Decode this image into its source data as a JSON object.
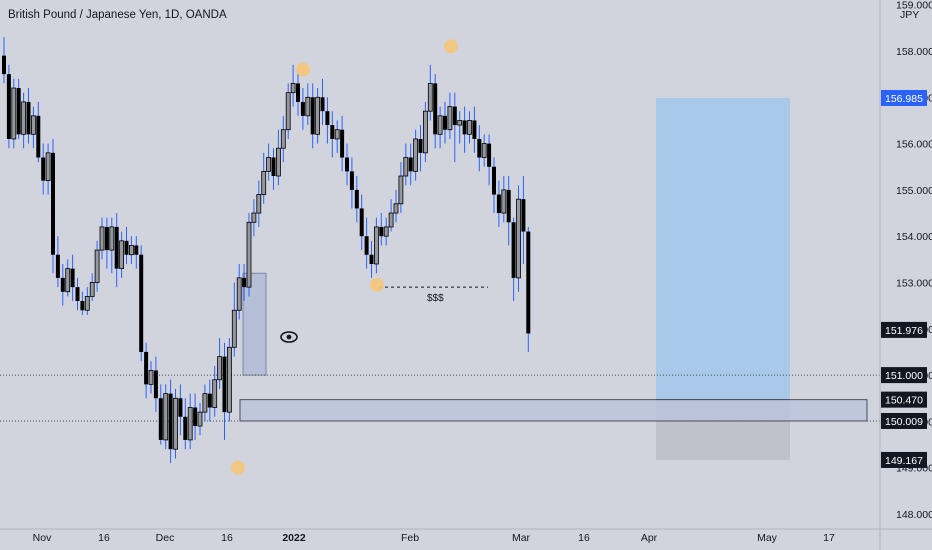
{
  "header": {
    "title": "British Pound / Japanese Yen, 1D, OANDA"
  },
  "price_axis": {
    "currency": "JPY",
    "ticks": [
      "159.000",
      "158.000",
      "157.000",
      "156.000",
      "155.000",
      "154.000",
      "153.000",
      "152.000",
      "151.000",
      "150.000",
      "149.000",
      "148.000"
    ]
  },
  "time_axis": {
    "labels": [
      "Nov",
      "16",
      "Dec",
      "16",
      "2022",
      "Feb",
      "Mar",
      "16",
      "Apr",
      "May",
      "17"
    ]
  },
  "price_badges": [
    {
      "name": "target-price-badge",
      "label": "156.985",
      "bg": "#2962ff",
      "fg": "#ffffff"
    },
    {
      "name": "last-price-badge",
      "label": "151.976",
      "bg": "#131722",
      "fg": "#ffffff"
    },
    {
      "name": "line-151-badge",
      "label": "151.000",
      "bg": "#131722",
      "fg": "#ffffff"
    },
    {
      "name": "zone-top-badge",
      "label": "150.470",
      "bg": "#131722",
      "fg": "#ffffff"
    },
    {
      "name": "zone-bottom-badge",
      "label": "150.009",
      "bg": "#131722",
      "fg": "#ffffff"
    },
    {
      "name": "stop-price-badge",
      "label": "149.167",
      "bg": "#131722",
      "fg": "#ffffff"
    }
  ],
  "annotations": {
    "liquidity_label": "$$$",
    "eye_icon": "eye-icon"
  },
  "colors": {
    "background": "#d1d4dc",
    "bull_body": "#9598a1",
    "bear_body": "#000000",
    "wick": "#2962ff",
    "marker": "#f5c57a",
    "profit_zone": "#a9c9ea",
    "loss_zone": "#b8bcc4",
    "demand_zone": "#b9c3dc"
  },
  "chart_data": {
    "type": "candlestick",
    "symbol": "British Pound / Japanese Yen",
    "interval": "1D",
    "ylim": [
      148,
      159
    ],
    "candles": [
      [
        157.9,
        157.5,
        158.3,
        157.3
      ],
      [
        157.5,
        156.1,
        157.7,
        155.9
      ],
      [
        156.1,
        157.2,
        157.4,
        155.9
      ],
      [
        157.2,
        156.2,
        157.4,
        156.1
      ],
      [
        156.2,
        156.9,
        157.1,
        155.9
      ],
      [
        156.9,
        156.2,
        157.2,
        156.0
      ],
      [
        156.2,
        156.6,
        156.8,
        155.9
      ],
      [
        156.6,
        155.7,
        156.9,
        155.6
      ],
      [
        155.7,
        155.2,
        156.0,
        154.9
      ],
      [
        155.2,
        155.8,
        156.0,
        154.9
      ],
      [
        155.8,
        153.6,
        156.1,
        153.2
      ],
      [
        153.6,
        153.1,
        154.0,
        152.9
      ],
      [
        153.1,
        152.8,
        153.4,
        152.5
      ],
      [
        152.8,
        153.3,
        153.5,
        152.7
      ],
      [
        153.3,
        152.9,
        153.6,
        152.6
      ],
      [
        152.9,
        152.6,
        153.1,
        152.4
      ],
      [
        152.6,
        152.4,
        152.8,
        152.3
      ],
      [
        152.4,
        152.7,
        152.9,
        152.3
      ],
      [
        152.7,
        153.0,
        153.2,
        152.6
      ],
      [
        153.0,
        153.7,
        153.9,
        152.8
      ],
      [
        153.7,
        154.2,
        154.4,
        153.5
      ],
      [
        154.2,
        153.7,
        154.4,
        153.3
      ],
      [
        153.7,
        154.2,
        154.4,
        153.2
      ],
      [
        154.2,
        153.3,
        154.5,
        152.9
      ],
      [
        153.3,
        153.9,
        154.1,
        153.1
      ],
      [
        153.9,
        153.6,
        154.2,
        153.4
      ],
      [
        153.6,
        153.8,
        154.0,
        153.4
      ],
      [
        153.8,
        153.6,
        154.0,
        153.3
      ],
      [
        153.6,
        151.5,
        153.8,
        151.3
      ],
      [
        151.5,
        150.8,
        151.7,
        150.5
      ],
      [
        150.8,
        151.1,
        151.3,
        150.6
      ],
      [
        151.1,
        150.5,
        151.4,
        150.2
      ],
      [
        150.5,
        149.6,
        150.8,
        149.5
      ],
      [
        149.6,
        150.6,
        150.8,
        149.4
      ],
      [
        150.6,
        149.4,
        150.9,
        149.1
      ],
      [
        149.4,
        150.5,
        150.7,
        149.2
      ],
      [
        150.5,
        150.1,
        150.8,
        149.7
      ],
      [
        150.1,
        149.6,
        150.5,
        149.4
      ],
      [
        149.6,
        150.3,
        150.6,
        149.4
      ],
      [
        150.3,
        149.9,
        150.6,
        149.6
      ],
      [
        149.9,
        150.2,
        150.4,
        149.7
      ],
      [
        150.2,
        150.6,
        150.8,
        150.0
      ],
      [
        150.6,
        150.3,
        150.9,
        150.0
      ],
      [
        150.3,
        150.9,
        151.2,
        150.1
      ],
      [
        150.9,
        151.4,
        151.8,
        150.7
      ],
      [
        151.4,
        150.2,
        151.7,
        149.6
      ],
      [
        150.2,
        151.6,
        151.8,
        150.0
      ],
      [
        151.6,
        152.4,
        153.0,
        151.4
      ],
      [
        152.4,
        153.1,
        153.4,
        152.2
      ],
      [
        153.1,
        152.9,
        153.4,
        152.6
      ],
      [
        152.9,
        154.3,
        154.5,
        152.7
      ],
      [
        154.3,
        154.5,
        154.8,
        154.0
      ],
      [
        154.5,
        154.9,
        155.2,
        154.2
      ],
      [
        154.9,
        155.4,
        155.8,
        154.7
      ],
      [
        155.4,
        155.7,
        156.0,
        155.2
      ],
      [
        155.7,
        155.3,
        155.9,
        155.0
      ],
      [
        155.3,
        155.9,
        156.3,
        155.1
      ],
      [
        155.9,
        156.3,
        156.6,
        155.6
      ],
      [
        156.3,
        157.1,
        157.3,
        156.1
      ],
      [
        157.1,
        157.3,
        157.7,
        156.8
      ],
      [
        157.3,
        156.9,
        157.6,
        156.6
      ],
      [
        156.9,
        156.6,
        157.2,
        156.3
      ],
      [
        156.6,
        157.0,
        157.3,
        156.4
      ],
      [
        157.0,
        156.2,
        157.3,
        155.9
      ],
      [
        156.2,
        157.0,
        157.2,
        156.0
      ],
      [
        157.0,
        156.7,
        157.4,
        156.4
      ],
      [
        156.7,
        156.4,
        157.0,
        156.0
      ],
      [
        156.4,
        156.1,
        156.7,
        155.7
      ],
      [
        156.1,
        156.3,
        156.5,
        155.8
      ],
      [
        156.3,
        155.7,
        156.6,
        155.4
      ],
      [
        155.7,
        155.4,
        156.0,
        155.1
      ],
      [
        155.4,
        155.0,
        155.7,
        154.6
      ],
      [
        155.0,
        154.6,
        155.3,
        154.3
      ],
      [
        154.6,
        154.0,
        154.9,
        153.7
      ],
      [
        154.0,
        153.6,
        154.4,
        153.3
      ],
      [
        153.6,
        153.4,
        153.9,
        153.1
      ],
      [
        153.4,
        154.2,
        154.4,
        153.2
      ],
      [
        154.2,
        154.0,
        154.5,
        153.8
      ],
      [
        154.0,
        154.2,
        154.4,
        153.8
      ],
      [
        154.2,
        154.5,
        154.8,
        154.1
      ],
      [
        154.5,
        154.7,
        155.0,
        154.3
      ],
      [
        154.7,
        155.3,
        155.6,
        154.5
      ],
      [
        155.3,
        155.7,
        156.0,
        155.1
      ],
      [
        155.7,
        155.4,
        156.0,
        155.1
      ],
      [
        155.4,
        156.1,
        156.3,
        155.2
      ],
      [
        156.1,
        155.8,
        156.4,
        155.4
      ],
      [
        155.8,
        156.7,
        156.9,
        155.6
      ],
      [
        156.7,
        157.3,
        157.7,
        156.5
      ],
      [
        157.3,
        156.2,
        157.5,
        155.9
      ],
      [
        156.2,
        156.6,
        156.8,
        155.9
      ],
      [
        156.6,
        156.3,
        156.9,
        156.0
      ],
      [
        156.3,
        156.8,
        157.1,
        156.1
      ],
      [
        156.8,
        156.4,
        157.1,
        155.6
      ],
      [
        156.4,
        156.5,
        156.7,
        156.0
      ],
      [
        156.5,
        156.2,
        156.8,
        155.8
      ],
      [
        156.2,
        156.5,
        156.7,
        156.0
      ],
      [
        156.5,
        156.1,
        156.8,
        155.8
      ],
      [
        156.1,
        155.7,
        156.4,
        155.4
      ],
      [
        155.7,
        156.0,
        156.2,
        155.5
      ],
      [
        156.0,
        155.5,
        156.2,
        155.1
      ],
      [
        155.5,
        154.9,
        155.7,
        154.5
      ],
      [
        154.9,
        154.5,
        155.2,
        154.2
      ],
      [
        154.5,
        155.0,
        155.3,
        154.3
      ],
      [
        155.0,
        154.3,
        155.3,
        153.8
      ],
      [
        154.3,
        153.1,
        154.4,
        152.6
      ],
      [
        153.1,
        154.8,
        155.1,
        152.8
      ],
      [
        154.8,
        154.1,
        155.3,
        153.4
      ],
      [
        154.1,
        151.9,
        154.2,
        151.5
      ]
    ]
  }
}
